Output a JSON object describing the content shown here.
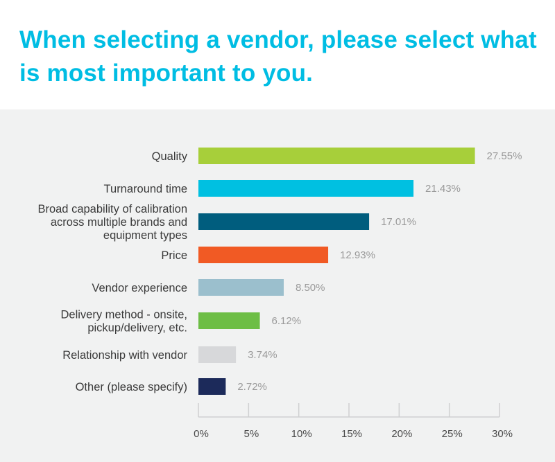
{
  "chart_data": {
    "type": "bar",
    "orientation": "horizontal",
    "title": "When selecting a vendor, please select what is most important to you.",
    "categories": [
      [
        "Quality"
      ],
      [
        "Turnaround time"
      ],
      [
        "Broad capability of calibration",
        "across multiple brands and",
        "equipment types"
      ],
      [
        "Price"
      ],
      [
        "Vendor experience"
      ],
      [
        "Delivery method - onsite,",
        "pickup/delivery, etc."
      ],
      [
        "Relationship with vendor"
      ],
      [
        "Other (please specify)"
      ]
    ],
    "values": [
      27.55,
      21.43,
      17.01,
      12.93,
      8.5,
      6.12,
      3.74,
      2.72
    ],
    "value_labels": [
      "27.55%",
      "21.43%",
      "17.01%",
      "12.93%",
      "8.50%",
      "6.12%",
      "3.74%",
      "2.72%"
    ],
    "colors": [
      "#a7cf3a",
      "#00c0e1",
      "#005d7e",
      "#f15a24",
      "#9bbfcd",
      "#6dbe45",
      "#d7d8da",
      "#1c2a5a"
    ],
    "xlim": [
      0,
      30
    ],
    "xticks": [
      0,
      5,
      10,
      15,
      20,
      25,
      30
    ],
    "xtick_labels": [
      "0%",
      "5%",
      "10%",
      "15%",
      "20%",
      "25%",
      "30%"
    ],
    "xlabel": "",
    "ylabel": "",
    "grid": false,
    "legend": "none",
    "title_color": "#00bde3"
  }
}
